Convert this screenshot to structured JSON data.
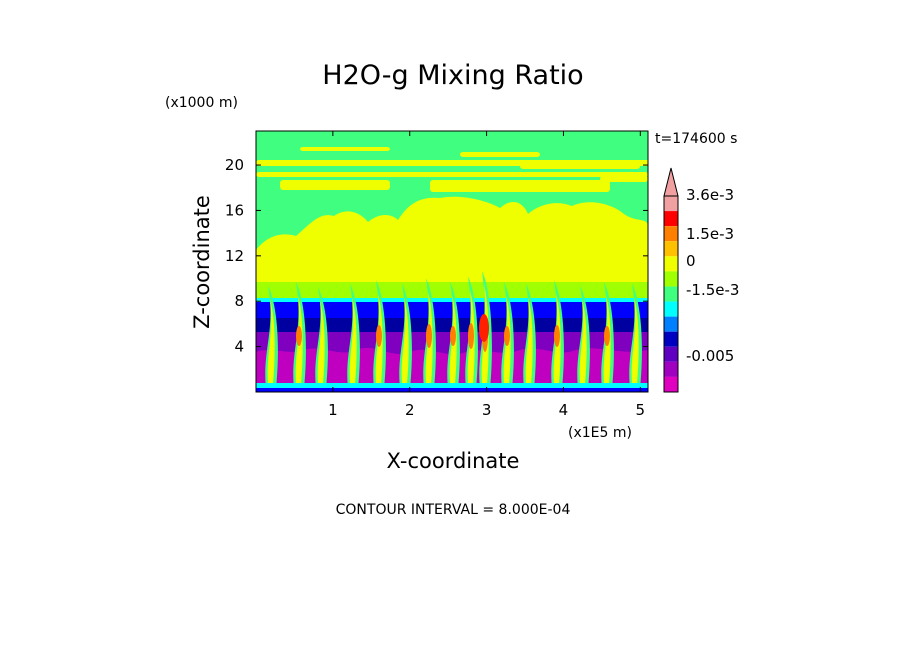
{
  "chart_data": {
    "type": "heatmap",
    "title": "H2O-g Mixing Ratio",
    "time_label": "t=174600 s",
    "xlabel": "X-coordinate",
    "ylabel": "Z-coordinate",
    "x_unit": "(x1E5 m)",
    "y_unit": "(x1000 m)",
    "x_ticks": [
      "1",
      "2",
      "3",
      "4",
      "5"
    ],
    "y_ticks": [
      "4",
      "8",
      "12",
      "16",
      "20"
    ],
    "xlim": [
      0,
      5.1
    ],
    "ylim": [
      0,
      23
    ],
    "contour_interval": "CONTOUR INTERVAL = 8.000E-04",
    "colorbar": {
      "labels": [
        "3.6e-3",
        "1.5e-3",
        "0",
        "-1.5e-3",
        "-0.005"
      ],
      "colors": [
        "#f0a0a0",
        "#ff0000",
        "#ff8000",
        "#ffc000",
        "#f0ff00",
        "#a0ff00",
        "#40ff80",
        "#00ffff",
        "#0080ff",
        "#0000c0",
        "#6000c0",
        "#a000c0",
        "#e000c0"
      ]
    },
    "palette": {
      "yellow": "#f0ff00",
      "green": "#40ff80",
      "lime": "#a0ff00",
      "cyan": "#00ffff",
      "blue": "#0000ff",
      "navy": "#0000a0",
      "purple": "#8000c0",
      "magenta": "#c000c0",
      "orange": "#ff8000",
      "red": "#ff2000"
    }
  }
}
